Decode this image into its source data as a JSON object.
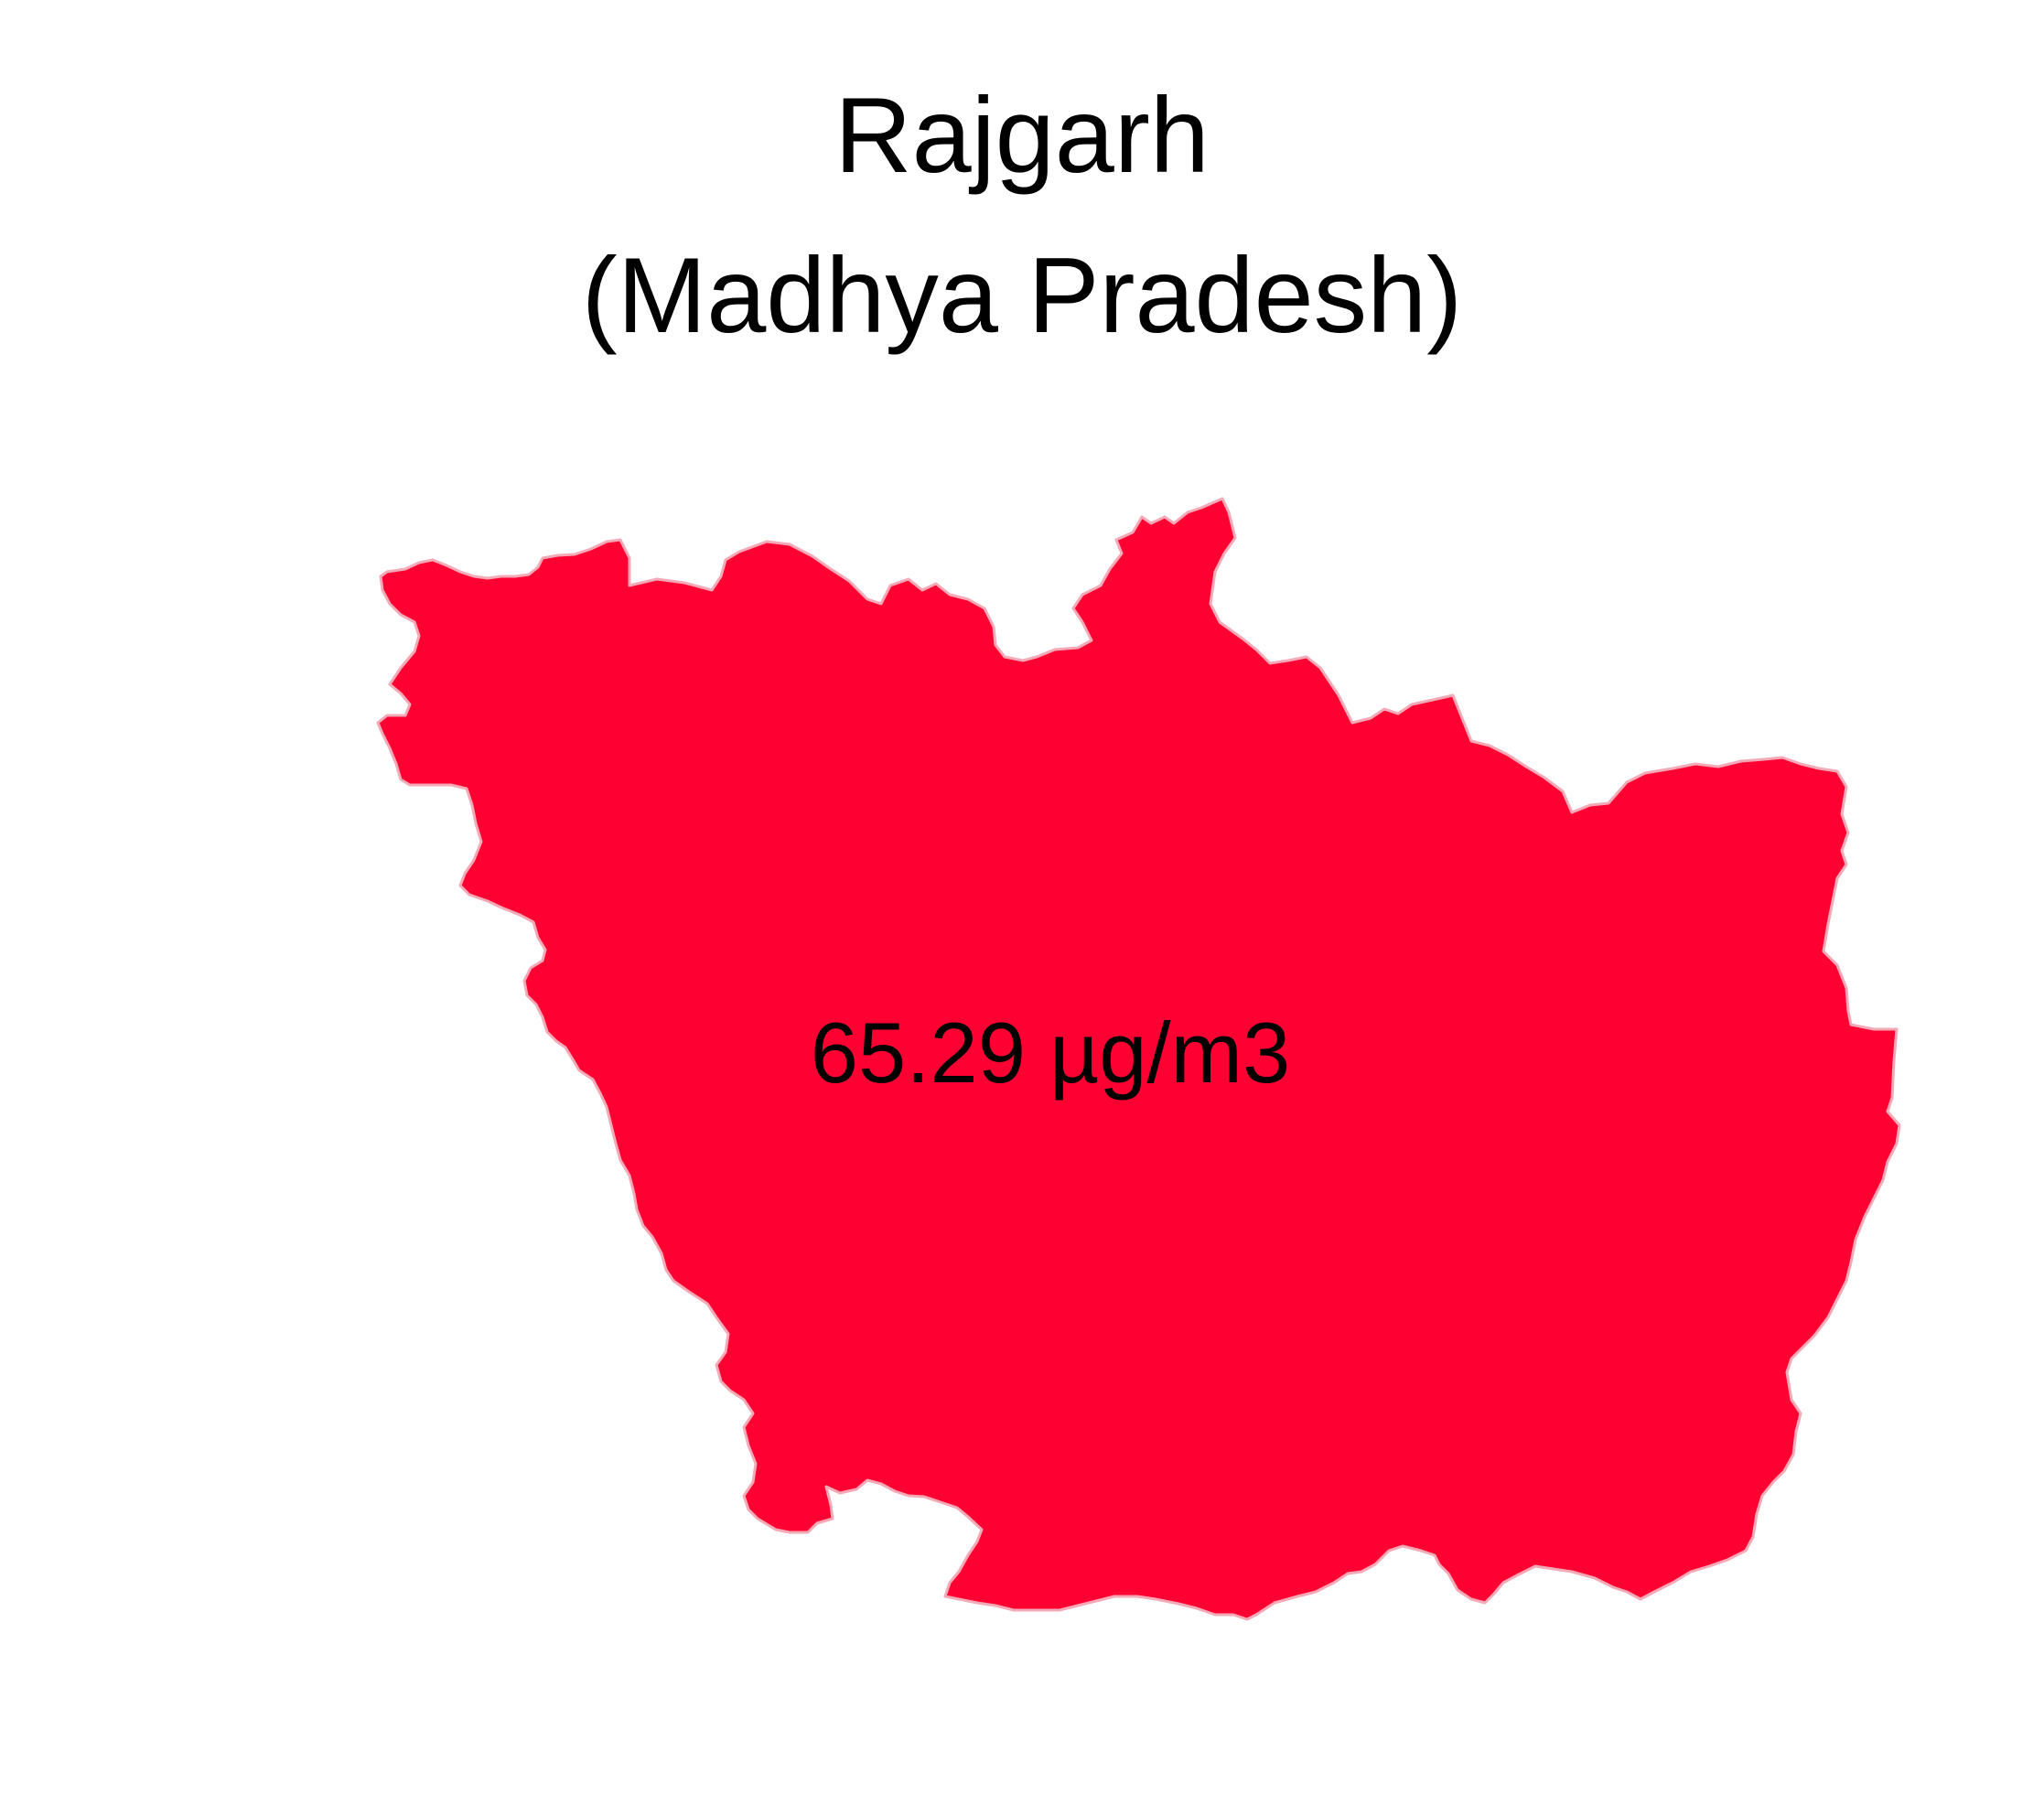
{
  "map": {
    "title": "Rajgarh",
    "subtitle": "(Madhya Pradesh)",
    "region_name": "Rajgarh",
    "value_label": "65.29 µg/m3",
    "fill_color": "#ff0033",
    "outline_color": "#f4a9b7",
    "background_color": "#ffffff"
  }
}
